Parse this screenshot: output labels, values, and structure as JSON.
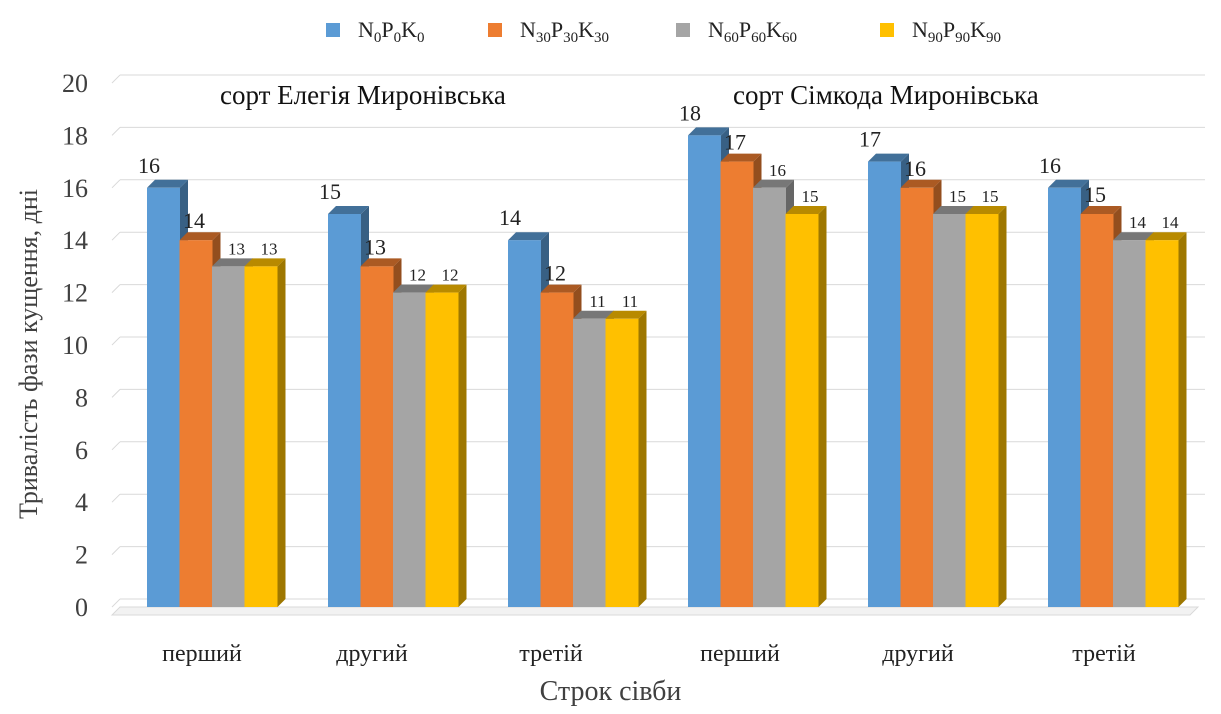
{
  "legend": [
    {
      "base": "N",
      "n": "0",
      "p": "0",
      "k": "0",
      "color": "#5b9bd5"
    },
    {
      "base": "N",
      "n": "30",
      "p": "30",
      "k": "30",
      "color": "#ed7d31"
    },
    {
      "base": "N",
      "n": "60",
      "p": "60",
      "k": "60",
      "color": "#a5a5a5"
    },
    {
      "base": "N",
      "n": "90",
      "p": "90",
      "k": "90",
      "color": "#ffc000"
    }
  ],
  "chart_data": {
    "type": "bar",
    "title": "",
    "xlabel": "Строк сівби",
    "ylabel": "Тривалість фази кущення, дні",
    "ylim": [
      0,
      20
    ],
    "yticks": [
      0,
      2,
      4,
      6,
      8,
      10,
      12,
      14,
      16,
      18,
      20
    ],
    "grid": true,
    "legend_position": "top",
    "groups": [
      "сорт Елегія Миронівська",
      "сорт Сімкода Миронівська"
    ],
    "categories": [
      "перший",
      "другий",
      "третій",
      "перший",
      "другий",
      "третій"
    ],
    "series": [
      {
        "name": "N0P0K0",
        "color": "#5b9bd5",
        "values": [
          16,
          15,
          14,
          18,
          17,
          16
        ]
      },
      {
        "name": "N30P30K30",
        "color": "#ed7d31",
        "values": [
          14,
          13,
          12,
          17,
          16,
          15
        ]
      },
      {
        "name": "N60P60K60",
        "color": "#a5a5a5",
        "values": [
          13,
          12,
          11,
          16,
          15,
          14
        ]
      },
      {
        "name": "N90P90K90",
        "color": "#ffc000",
        "values": [
          13,
          12,
          11,
          15,
          15,
          14
        ]
      }
    ]
  }
}
